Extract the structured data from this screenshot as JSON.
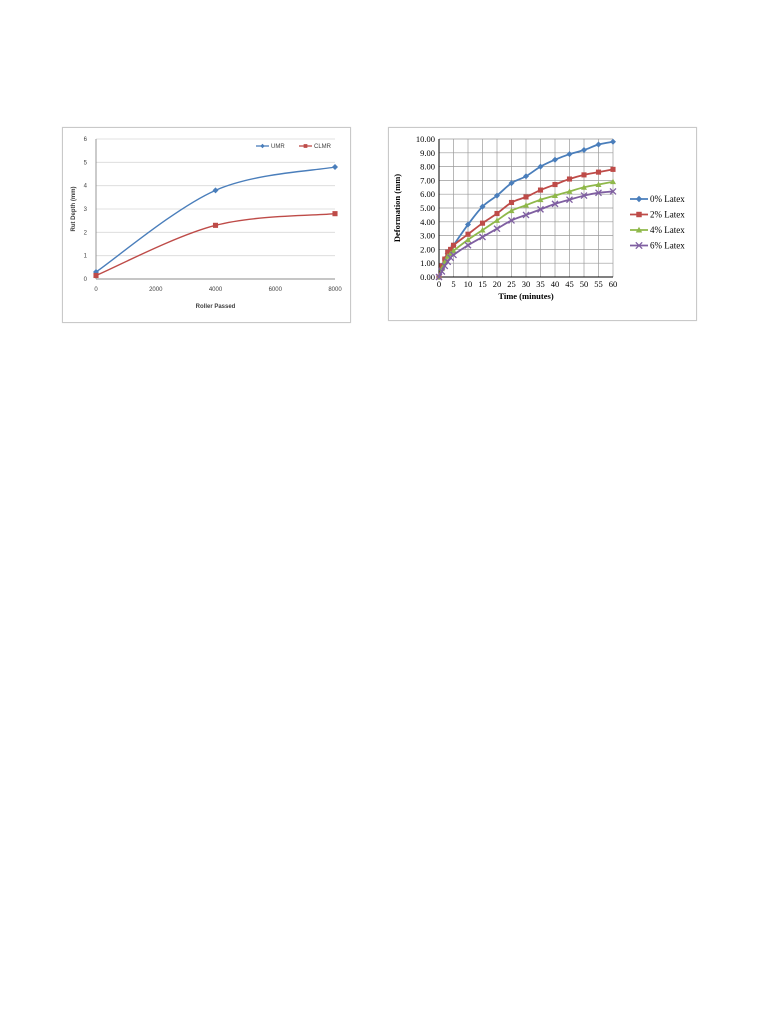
{
  "chart_data": [
    {
      "type": "line",
      "title": "",
      "xlabel": "Roller Passed",
      "ylabel": "Rut Depth (mm)",
      "x": [
        0,
        4000,
        8000
      ],
      "xlim": [
        0,
        8000
      ],
      "ylim": [
        0,
        6
      ],
      "xticks": [
        "0",
        "2000",
        "4000",
        "6000",
        "8000"
      ],
      "yticks": [
        "0",
        "1",
        "2",
        "3",
        "4",
        "5",
        "6"
      ],
      "grid": "horizontal",
      "legend_position": "top-right",
      "series": [
        {
          "name": "UMR",
          "values": [
            0.3,
            3.8,
            4.8
          ],
          "color": "#4a7ebb",
          "marker": "diamond"
        },
        {
          "name": "CLMR",
          "values": [
            0.15,
            2.3,
            2.8
          ],
          "color": "#be4b48",
          "marker": "square"
        }
      ]
    },
    {
      "type": "line",
      "title": "",
      "xlabel": "Time (minutes)",
      "ylabel": "Deformation (mm)",
      "x": [
        0,
        1,
        2,
        3,
        4,
        5,
        10,
        15,
        20,
        25,
        30,
        35,
        40,
        45,
        50,
        55,
        60
      ],
      "xlim": [
        0,
        60
      ],
      "ylim": [
        0,
        10
      ],
      "xticks": [
        "0",
        "5",
        "10",
        "15",
        "20",
        "25",
        "30",
        "35",
        "40",
        "45",
        "50",
        "55",
        "60"
      ],
      "yticks": [
        "0.00",
        "1.00",
        "2.00",
        "3.00",
        "4.00",
        "5.00",
        "6.00",
        "7.00",
        "8.00",
        "9.00",
        "10.00"
      ],
      "grid": "both",
      "legend_position": "right",
      "series": [
        {
          "name": "0% Latex",
          "values": [
            0,
            0.7,
            1.3,
            1.7,
            2.0,
            2.3,
            3.8,
            5.1,
            5.9,
            6.8,
            7.3,
            8.0,
            8.5,
            8.9,
            9.2,
            9.6,
            9.8
          ],
          "color": "#4a7ebb",
          "marker": "diamond"
        },
        {
          "name": "2% Latex",
          "values": [
            0,
            0.8,
            1.3,
            1.8,
            2.0,
            2.3,
            3.1,
            3.9,
            4.6,
            5.4,
            5.8,
            6.3,
            6.7,
            7.1,
            7.4,
            7.6,
            7.8
          ],
          "color": "#be4b48",
          "marker": "square"
        },
        {
          "name": "4% Latex",
          "values": [
            0,
            0.6,
            1.1,
            1.5,
            1.7,
            1.9,
            2.7,
            3.4,
            4.1,
            4.8,
            5.2,
            5.6,
            5.9,
            6.2,
            6.5,
            6.7,
            6.9
          ],
          "color": "#8fb84a",
          "marker": "triangle"
        },
        {
          "name": "6% Latex",
          "values": [
            0,
            0.4,
            0.8,
            1.1,
            1.4,
            1.6,
            2.3,
            2.9,
            3.5,
            4.1,
            4.5,
            4.9,
            5.3,
            5.6,
            5.9,
            6.1,
            6.2
          ],
          "color": "#7f5fa1",
          "marker": "x"
        }
      ]
    }
  ]
}
